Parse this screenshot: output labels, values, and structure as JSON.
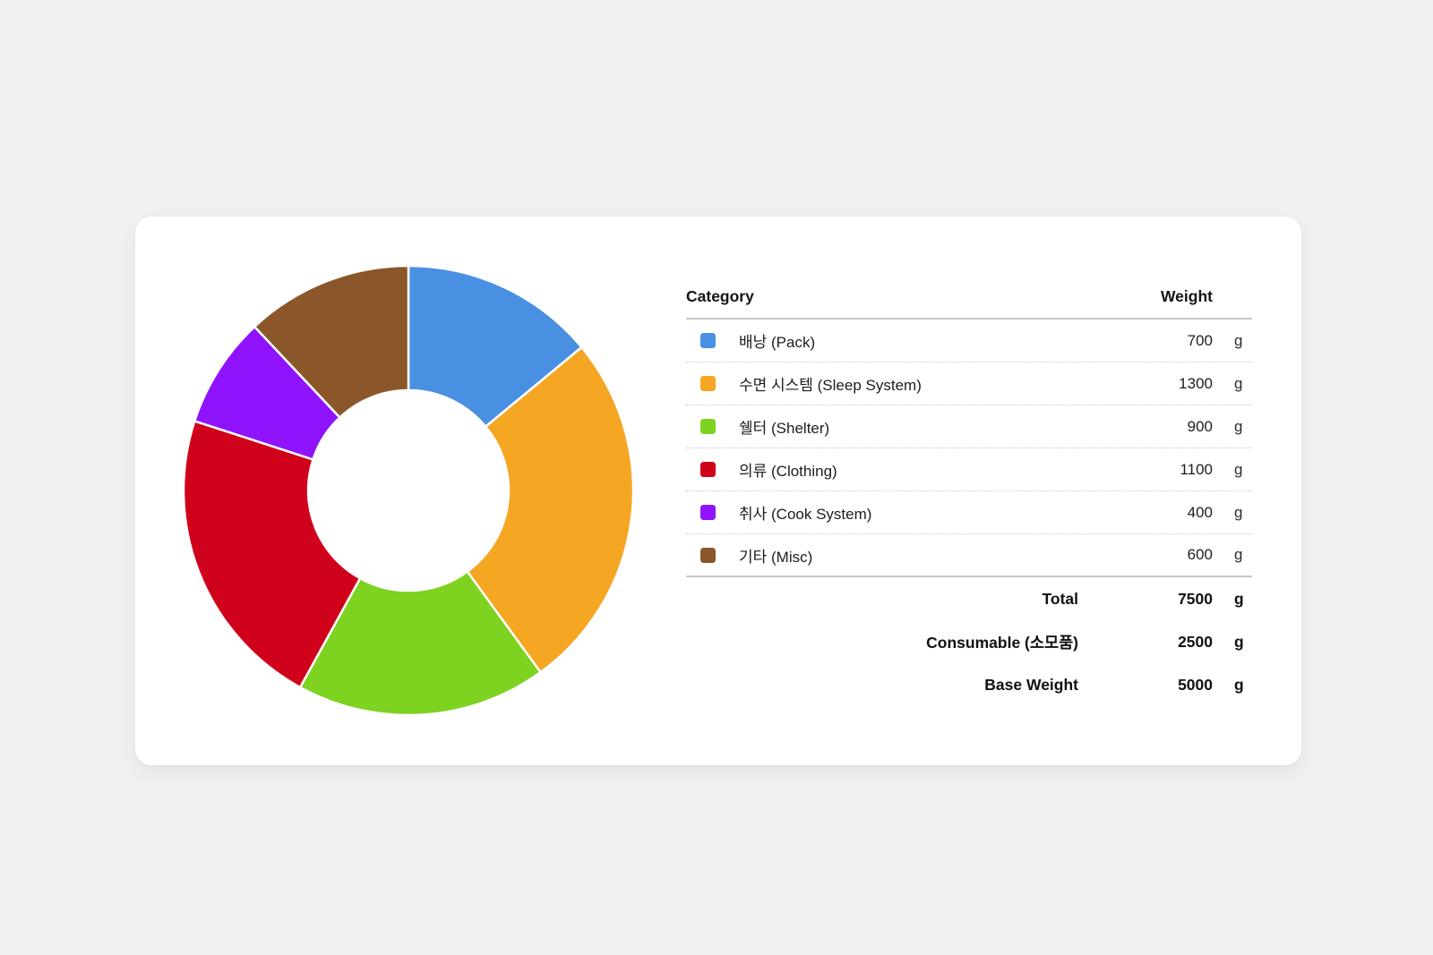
{
  "page": {
    "background": "#f0f0ee"
  },
  "card": {
    "background": "#ffffff"
  },
  "table": {
    "header": {
      "category": "Category",
      "weight": "Weight"
    },
    "rows": [
      {
        "label": "배낭 (Pack)",
        "weight": "700",
        "unit": "g",
        "color": "#4A90E2"
      },
      {
        "label": "수면 시스템 (Sleep System)",
        "weight": "1300",
        "unit": "g",
        "color": "#F5A623"
      },
      {
        "label": "쉘터 (Shelter)",
        "weight": "900",
        "unit": "g",
        "color": "#7ED321"
      },
      {
        "label": "의류 (Clothing)",
        "weight": "1100",
        "unit": "g",
        "color": "#D0021B"
      },
      {
        "label": "취사 (Cook System)",
        "weight": "400",
        "unit": "g",
        "color": "#9013FE"
      },
      {
        "label": "기타 (Misc)",
        "weight": "600",
        "unit": "g",
        "color": "#8B572A"
      }
    ],
    "summary": [
      {
        "label": "Total",
        "value": "7500",
        "unit": "g"
      },
      {
        "label": "Consumable (소모품)",
        "value": "2500",
        "unit": "g"
      },
      {
        "label": "Base Weight",
        "value": "5000",
        "unit": "g"
      }
    ]
  },
  "chart_data": {
    "type": "pie",
    "subtype": "donut",
    "title": "",
    "categories": [
      "배낭 (Pack)",
      "수면 시스템 (Sleep System)",
      "쉘터 (Shelter)",
      "의류 (Clothing)",
      "취사 (Cook System)",
      "기타 (Misc)"
    ],
    "values": [
      700,
      1300,
      900,
      1100,
      400,
      600
    ],
    "unit": "g",
    "colors": [
      "#4A90E2",
      "#F5A623",
      "#7ED321",
      "#D0021B",
      "#9013FE",
      "#8B572A"
    ],
    "values_sum": 5000,
    "total_weight": 7500,
    "consumable_weight": 2500,
    "base_weight": 5000,
    "start_angle_deg": 0,
    "direction": "clockwise",
    "inner_radius_ratio": 0.446,
    "segment_gap_color": "#ffffff",
    "legend_position": "right-table"
  }
}
